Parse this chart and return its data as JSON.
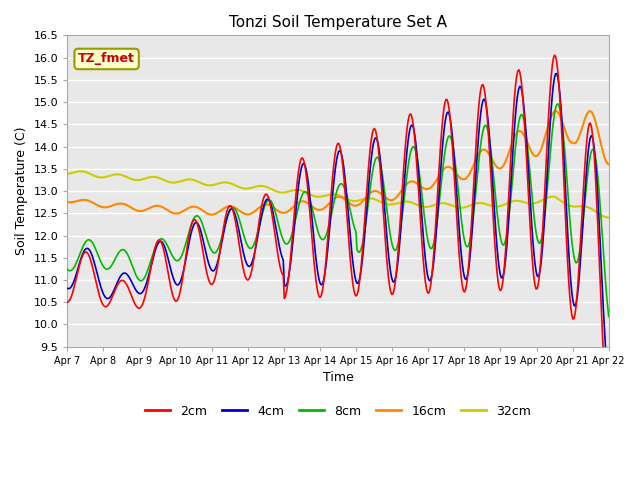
{
  "title": "Tonzi Soil Temperature Set A",
  "xlabel": "Time",
  "ylabel": "Soil Temperature (C)",
  "annotation": "TZ_fmet",
  "ylim": [
    9.5,
    16.5
  ],
  "xlim": [
    0,
    15
  ],
  "xtick_labels": [
    "Apr 7",
    "Apr 8",
    "Apr 9",
    "Apr 10",
    "Apr 11",
    "Apr 12",
    "Apr 13",
    "Apr 14",
    "Apr 15",
    "Apr 16",
    "Apr 17",
    "Apr 18",
    "Apr 19",
    "Apr 20",
    "Apr 21",
    "Apr 22"
  ],
  "ytick_labels": [
    "9.5",
    "10.0",
    "10.5",
    "11.0",
    "11.5",
    "12.0",
    "12.5",
    "13.0",
    "13.5",
    "14.0",
    "14.5",
    "15.0",
    "15.5",
    "16.0",
    "16.5"
  ],
  "colors": {
    "2cm": "#ff0000",
    "4cm": "#0000cc",
    "8cm": "#00bb00",
    "16cm": "#ff8800",
    "32cm": "#cccc00"
  },
  "bg_color": "#e8e8e8",
  "annotation_bg": "#ffffcc",
  "annotation_border": "#999900"
}
